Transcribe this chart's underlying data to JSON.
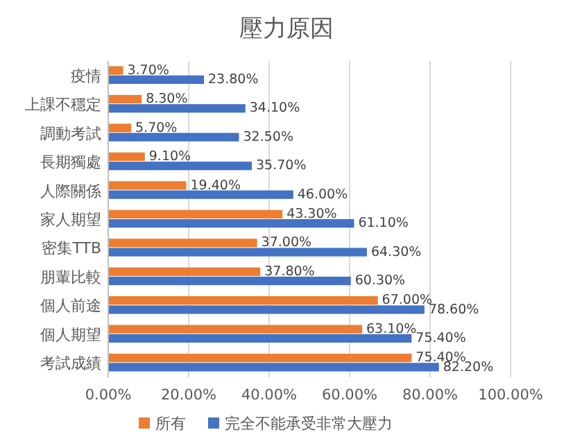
{
  "chart_data": {
    "type": "bar",
    "orientation": "horizontal",
    "title": "壓力原因",
    "categories": [
      "疫情",
      "上課不穩定",
      "調動考試",
      "長期獨處",
      "人際關係",
      "家人期望",
      "密集TTB",
      "朋輩比較",
      "個人前途",
      "個人期望",
      "考試成績"
    ],
    "series": [
      {
        "name": "所有",
        "color": "#ed7d31",
        "values": [
          3.7,
          8.3,
          5.7,
          9.1,
          19.4,
          43.3,
          37.0,
          37.8,
          67.0,
          63.1,
          75.4
        ],
        "value_labels": [
          "3.70%",
          "8.30%",
          "5.70%",
          "9.10%",
          "19.40%",
          "43.30%",
          "37.00%",
          "37.80%",
          "67.00%",
          "63.10%",
          "75.40%"
        ]
      },
      {
        "name": "完全不能承受非常大壓力",
        "color": "#4472c4",
        "values": [
          23.8,
          34.1,
          32.5,
          35.7,
          46.0,
          61.1,
          64.3,
          60.3,
          78.6,
          75.4,
          82.2
        ],
        "value_labels": [
          "23.80%",
          "34.10%",
          "32.50%",
          "35.70%",
          "46.00%",
          "61.10%",
          "64.30%",
          "60.30%",
          "78.60%",
          "75.40%",
          "82.20%"
        ]
      }
    ],
    "xlim": [
      0,
      100
    ],
    "xticks": [
      {
        "value": 0,
        "label": "0.00%"
      },
      {
        "value": 20,
        "label": "20.00%"
      },
      {
        "value": 40,
        "label": "40.00%"
      },
      {
        "value": 60,
        "label": "60.00%"
      },
      {
        "value": 80,
        "label": "80.00%"
      },
      {
        "value": 100,
        "label": "100.00%"
      }
    ],
    "grid": "x",
    "legend": "bottom"
  }
}
